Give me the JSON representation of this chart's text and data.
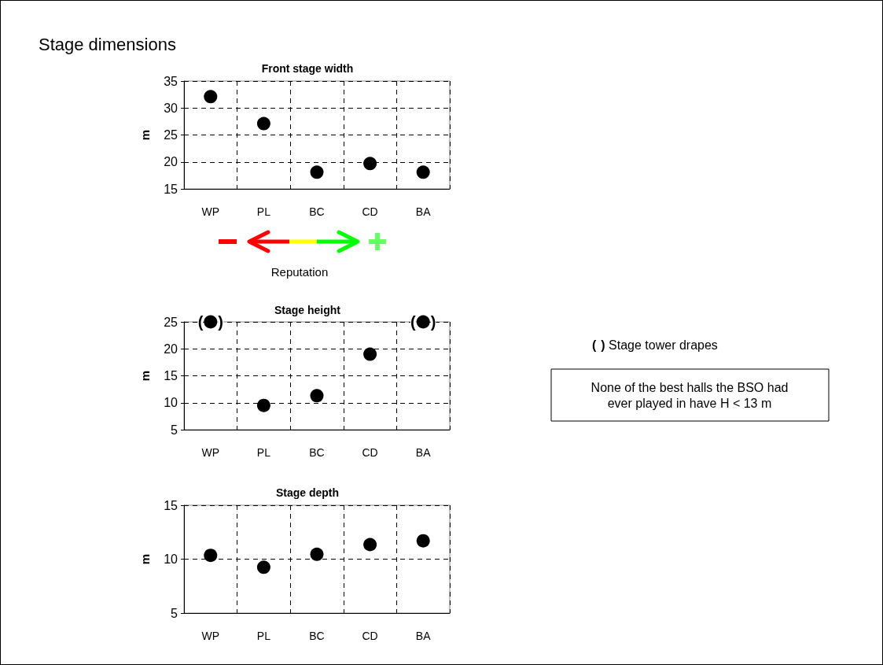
{
  "chart_data": [
    {
      "type": "scatter",
      "title": "Front stage width",
      "ylabel": "m",
      "categories": [
        "WP",
        "PL",
        "BC",
        "CD",
        "BA"
      ],
      "values": [
        32.1,
        27.1,
        18.1,
        19.7,
        18.1
      ],
      "color": "#000000",
      "ylim": [
        15,
        35
      ],
      "yticks": [
        15,
        20,
        25,
        30,
        35
      ],
      "grid": true,
      "marker": "circle",
      "annotations": [
        "Stage dimensions",
        "Reputation"
      ]
    },
    {
      "type": "scatter",
      "title": "Stage height",
      "ylabel": "m",
      "categories": [
        "WP",
        "PL",
        "BC",
        "CD",
        "BA"
      ],
      "values": [
        25,
        9.5,
        11.3,
        19,
        25
      ],
      "color": "#000000",
      "ylim": [
        5,
        25
      ],
      "yticks": [
        5,
        10,
        15,
        20,
        25
      ],
      "grid": true,
      "marker": "circle",
      "annotations": [
        {
          "text": "( )",
          "x": "WP",
          "y": 25
        },
        {
          "text": "( )",
          "x": "BA",
          "y": 25
        },
        "( ) Stage tower drapes",
        "None of the best halls the BSO had ever played in have H < 13 m"
      ]
    },
    {
      "type": "scatter",
      "title": "Stage depth",
      "ylabel": "m",
      "categories": [
        "WP",
        "PL",
        "BC",
        "CD",
        "BA"
      ],
      "values": [
        10.35,
        9.25,
        10.45,
        11.35,
        11.7
      ],
      "color": "#000000",
      "ylim": [
        5,
        15
      ],
      "yticks": [
        5,
        10,
        15
      ],
      "grid": true,
      "marker": "circle"
    }
  ]
}
